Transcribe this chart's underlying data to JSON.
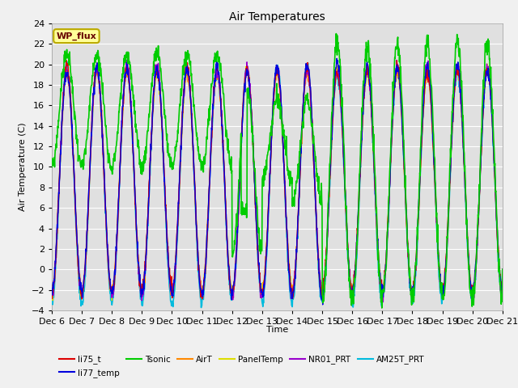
{
  "title": "Air Temperatures",
  "xlabel": "Time",
  "ylabel": "Air Temperature (C)",
  "ylim": [
    -4,
    24
  ],
  "x_tick_labels": [
    "Dec 6",
    "Dec 7",
    "Dec 8",
    "Dec 9",
    "Dec 10",
    "Dec 11",
    "Dec 12",
    "Dec 13",
    "Dec 14",
    "Dec 15",
    "Dec 16",
    "Dec 17",
    "Dec 18",
    "Dec 19",
    "Dec 20",
    "Dec 21"
  ],
  "series": {
    "li75_t": {
      "color": "#dd0000",
      "lw": 1.0
    },
    "li77_temp": {
      "color": "#0000dd",
      "lw": 1.0
    },
    "Tsonic": {
      "color": "#00cc00",
      "lw": 1.2
    },
    "AirT": {
      "color": "#ff8800",
      "lw": 1.0
    },
    "PanelTemp": {
      "color": "#dddd00",
      "lw": 1.0
    },
    "NR01_PRT": {
      "color": "#9900cc",
      "lw": 1.0
    },
    "AM25T_PRT": {
      "color": "#00bbdd",
      "lw": 1.2
    }
  },
  "legend_box_facecolor": "#ffff99",
  "legend_box_edgecolor": "#bbaa00",
  "legend_label_color": "#660000",
  "legend_label": "WP_flux",
  "fig_facecolor": "#f0f0f0",
  "ax_facecolor": "#e0e0e0",
  "grid_color": "#ffffff",
  "n_days": 15,
  "pts_per_day": 96
}
